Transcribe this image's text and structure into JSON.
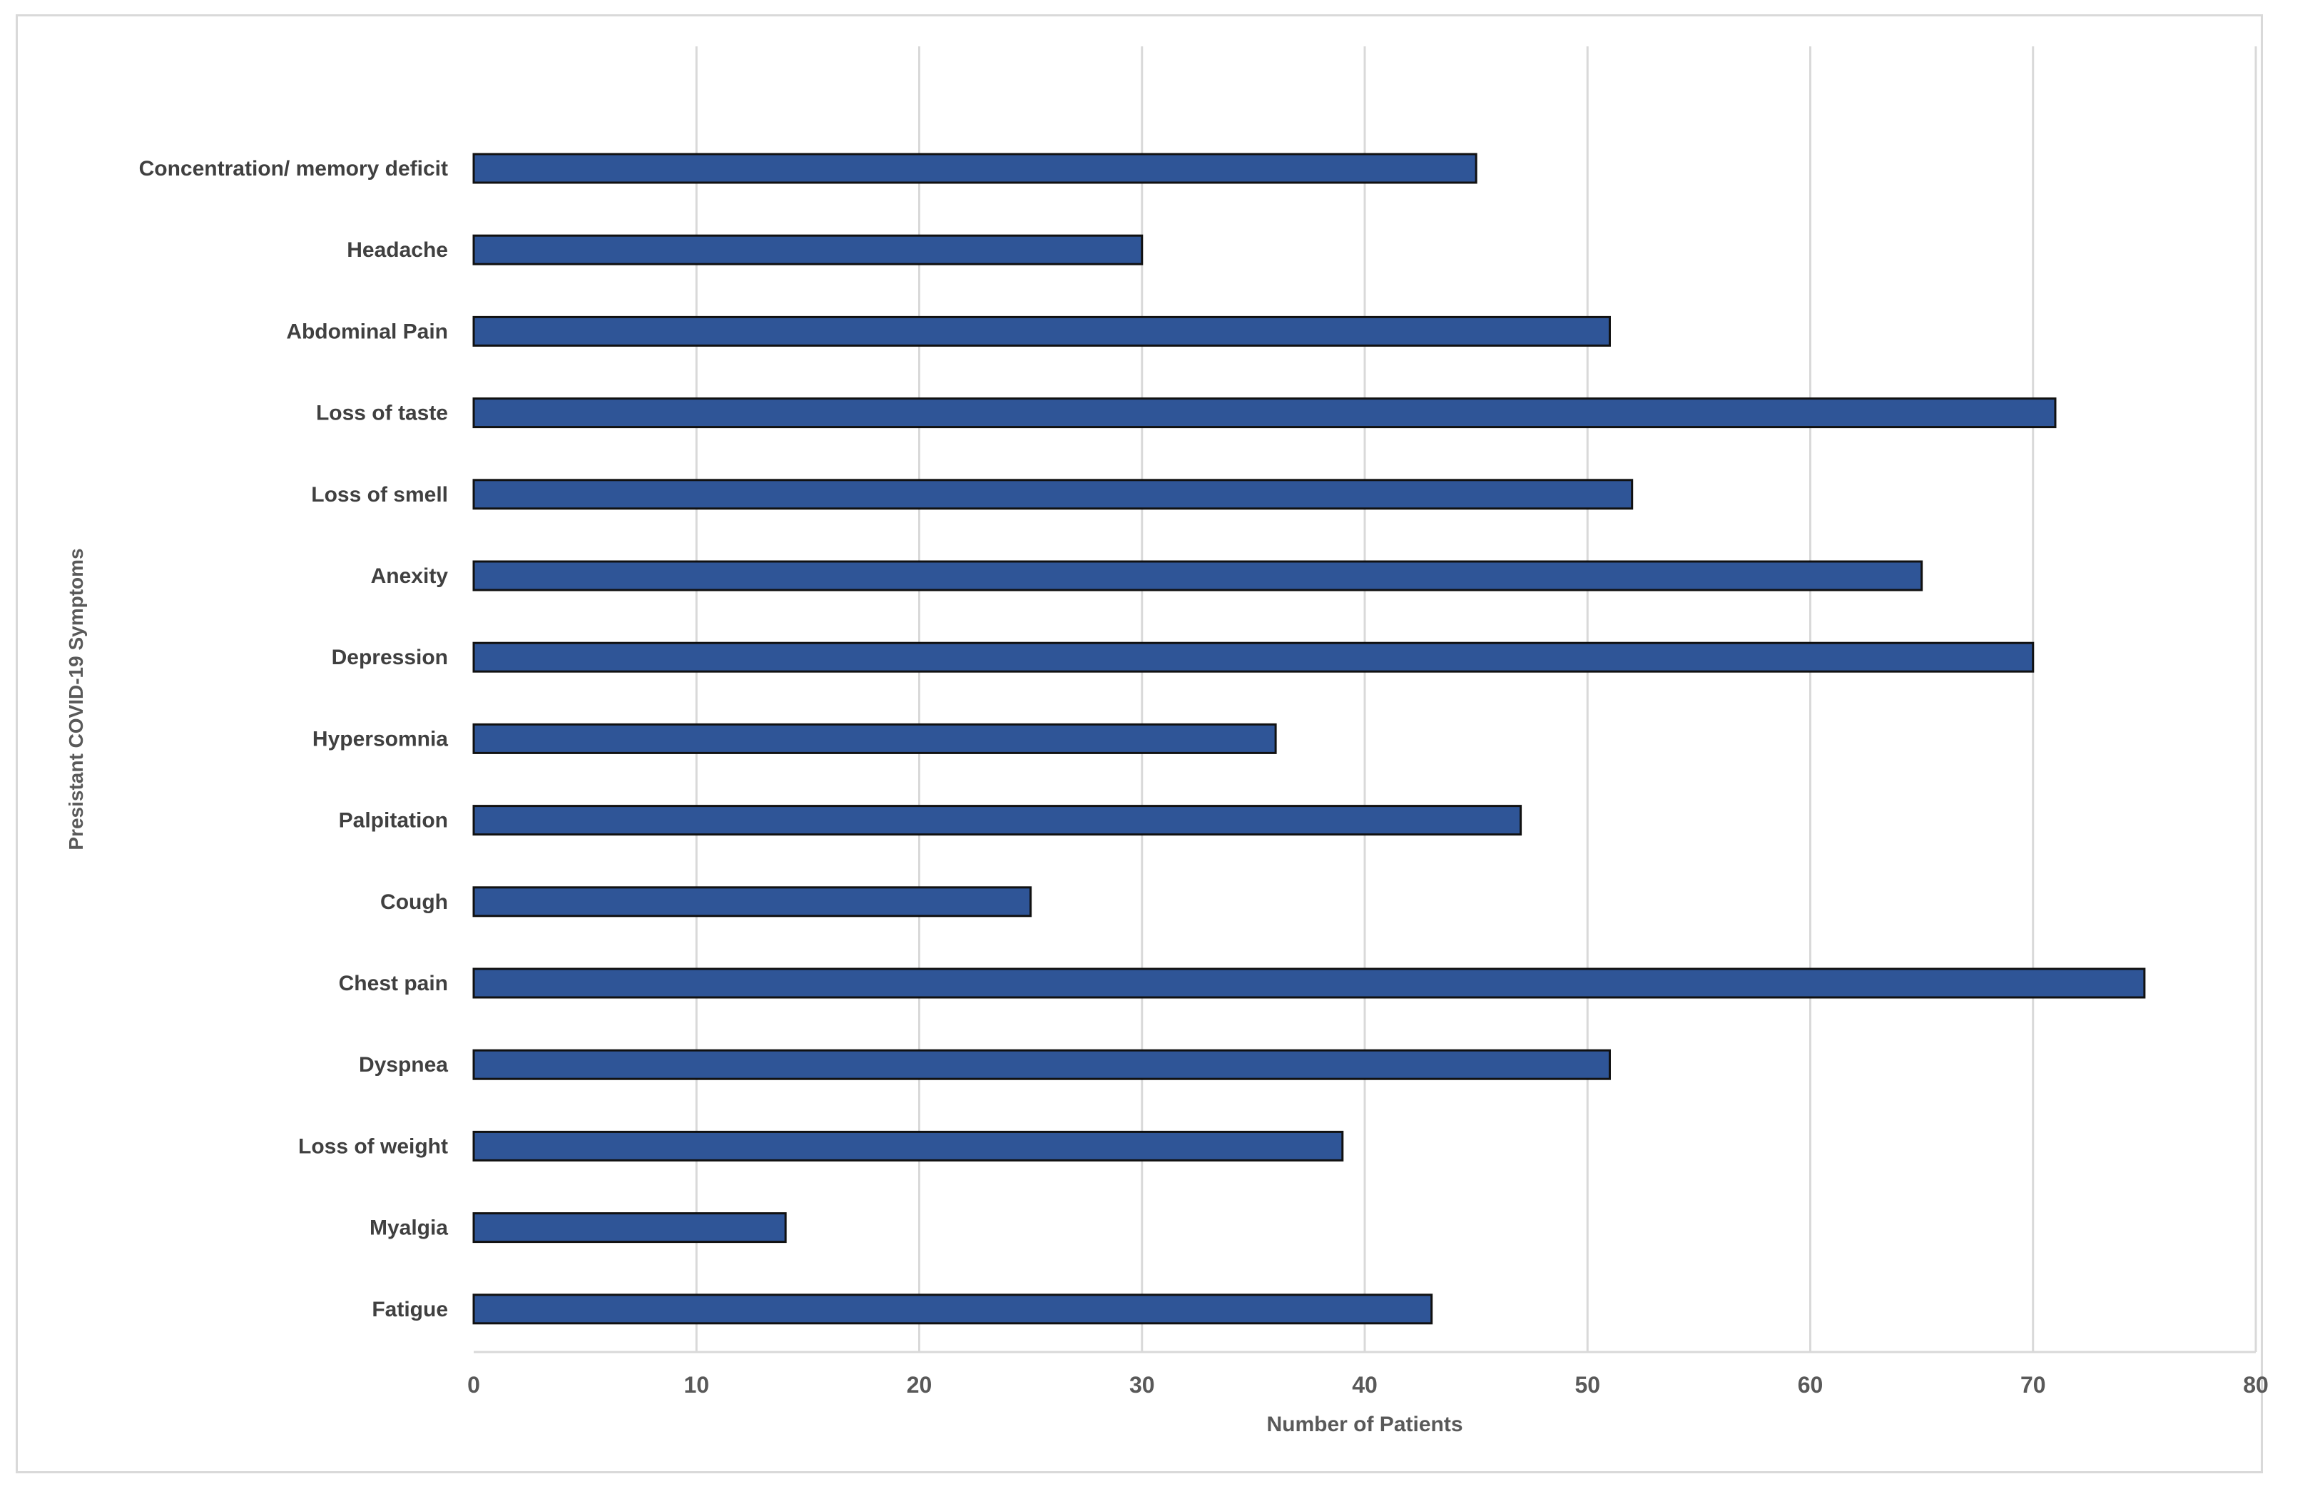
{
  "chart_data": {
    "type": "bar",
    "orientation": "horizontal",
    "title": "",
    "xlabel": "Number of Patients",
    "ylabel": "Presistant COVID-19 Symptoms",
    "categories": [
      "Concentration/ memory deficit",
      "Headache",
      "Abdominal Pain",
      "Loss of taste",
      "Loss of smell",
      "Anexity",
      "Depression",
      "Hypersomnia",
      "Palpitation",
      "Cough",
      "Chest pain",
      "Dyspnea",
      "Loss of weight",
      "Myalgia",
      "Fatigue"
    ],
    "values": [
      45,
      30,
      51,
      71,
      52,
      65,
      70,
      36,
      47,
      25,
      75,
      51,
      39,
      14,
      43
    ],
    "xlim": [
      0,
      80
    ],
    "xticks": [
      0,
      10,
      20,
      30,
      40,
      50,
      60,
      70,
      80
    ],
    "grid": "vertical",
    "legend": "none",
    "colors": {
      "bar_fill": "#2f5597",
      "bar_stroke": "#111111",
      "grid": "#d9d9d9",
      "frame": "#d9d9d9"
    }
  }
}
